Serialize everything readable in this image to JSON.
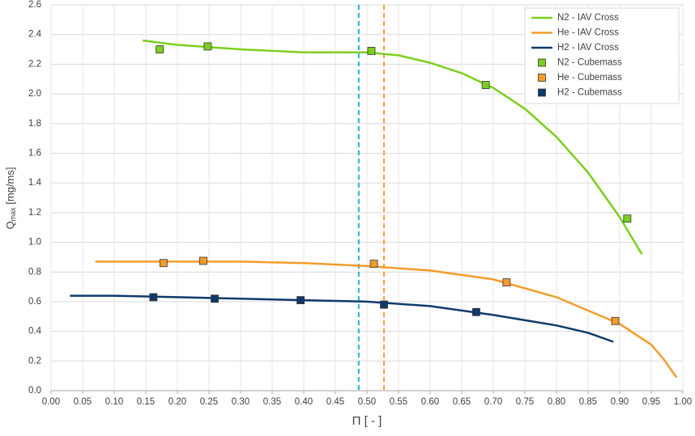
{
  "chart_data": {
    "type": "line",
    "xlabel": "Π [ - ]",
    "ylabel": {
      "main": "Q",
      "sub": "max",
      "rest": " [mg/ms]"
    },
    "xlim": [
      0,
      1
    ],
    "ylim": [
      0,
      2.6
    ],
    "xticks": [
      {
        "value": 0,
        "label": "0.00"
      },
      0.05,
      {
        "value": 0.1,
        "label": "0.10"
      },
      0.15,
      {
        "value": 0.2,
        "label": "0.20"
      },
      0.25,
      {
        "value": 0.3,
        "label": "0.30"
      },
      0.35,
      {
        "value": 0.4,
        "label": "0.40"
      },
      0.45,
      {
        "value": 0.5,
        "label": "0.50"
      },
      0.55,
      {
        "value": 0.6,
        "label": "0.60"
      },
      0.65,
      {
        "value": 0.7,
        "label": "0.70"
      },
      0.75,
      {
        "value": 0.8,
        "label": "0.80"
      },
      0.85,
      {
        "value": 0.9,
        "label": "0.90"
      },
      0.95,
      {
        "value": 1,
        "label": "1.00"
      }
    ],
    "yticks": [
      {
        "value": 0,
        "label": "0.0"
      },
      0.2,
      0.4,
      0.6,
      0.8,
      {
        "value": 1,
        "label": "1.0"
      },
      1.2,
      1.4,
      1.6,
      1.8,
      {
        "value": 2,
        "label": "2.0"
      },
      2.2,
      2.4,
      2.6
    ],
    "grid": true,
    "legend": "top-right",
    "vlines": [
      {
        "x": 0.487,
        "color": "#1fb4d8"
      },
      {
        "x": 0.527,
        "color": "#f0a030"
      }
    ],
    "series": [
      {
        "name": "N2 - IAV Cross",
        "color": "#7ccf1e",
        "style": "line",
        "x": [
          0.145,
          0.2,
          0.3,
          0.4,
          0.5,
          0.55,
          0.6,
          0.65,
          0.7,
          0.75,
          0.8,
          0.85,
          0.9,
          0.935
        ],
        "values": [
          2.36,
          2.33,
          2.3,
          2.28,
          2.28,
          2.26,
          2.21,
          2.14,
          2.04,
          1.9,
          1.71,
          1.47,
          1.17,
          0.92
        ]
      },
      {
        "name": "He - IAV Cross",
        "color": "#f39c2c",
        "style": "line",
        "x": [
          0.07,
          0.2,
          0.3,
          0.4,
          0.5,
          0.6,
          0.7,
          0.8,
          0.9,
          0.95,
          0.97,
          0.99
        ],
        "values": [
          0.87,
          0.87,
          0.87,
          0.86,
          0.84,
          0.81,
          0.75,
          0.63,
          0.45,
          0.31,
          0.21,
          0.09
        ]
      },
      {
        "name": "H2 - IAV Cross",
        "color": "#0e3a6b",
        "style": "line",
        "x": [
          0.03,
          0.1,
          0.2,
          0.3,
          0.4,
          0.5,
          0.6,
          0.7,
          0.8,
          0.85,
          0.89
        ],
        "values": [
          0.64,
          0.64,
          0.63,
          0.62,
          0.61,
          0.6,
          0.57,
          0.51,
          0.44,
          0.39,
          0.33
        ]
      },
      {
        "name": "N2 - Cubemass",
        "color": "#7ccf1e",
        "style": "marker",
        "x": [
          0.172,
          0.248,
          0.507,
          0.688,
          0.912
        ],
        "values": [
          2.3,
          2.32,
          2.29,
          2.06,
          1.16
        ]
      },
      {
        "name": "He - Cubemass",
        "color": "#f39c2c",
        "style": "marker",
        "x": [
          0.178,
          0.241,
          0.511,
          0.721,
          0.893
        ],
        "values": [
          0.86,
          0.875,
          0.855,
          0.73,
          0.47
        ]
      },
      {
        "name": "H2 - Cubemass",
        "color": "#0e3a6b",
        "style": "marker",
        "x": [
          0.162,
          0.259,
          0.395,
          0.527,
          0.673
        ],
        "values": [
          0.63,
          0.62,
          0.61,
          0.58,
          0.53
        ]
      }
    ]
  }
}
